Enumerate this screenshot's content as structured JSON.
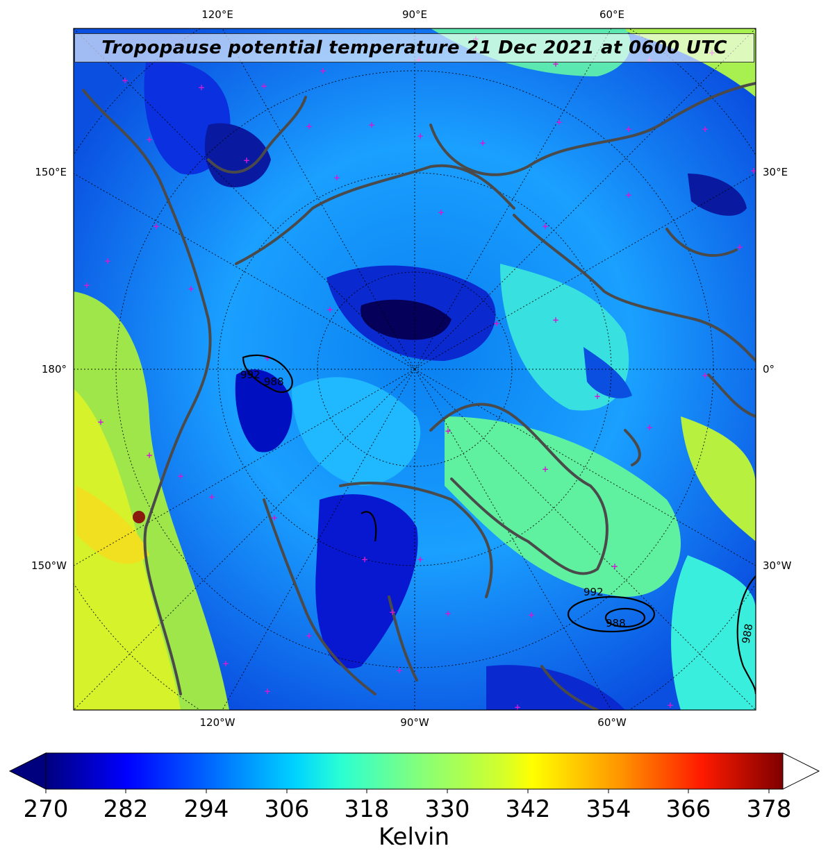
{
  "title": "Tropopause potential temperature 21 Dec 2021 at 0600 UTC",
  "longitude_labels": {
    "top": [
      "120°E",
      "90°E",
      "60°E"
    ],
    "bottom": [
      "120°W",
      "90°W",
      "60°W"
    ],
    "left": [
      "150°E",
      "180°",
      "150°W"
    ],
    "right": [
      "30°E",
      "0°",
      "30°W"
    ]
  },
  "pressure_contours": [
    "992",
    "988",
    "992",
    "988",
    "988"
  ],
  "colorbar": {
    "label": "Kelvin",
    "ticks": [
      "270",
      "282",
      "294",
      "306",
      "318",
      "330",
      "342",
      "354",
      "366",
      "378"
    ],
    "min": 270,
    "max": 380,
    "extend": "both",
    "colormap": "jet",
    "colors": [
      "#00007f",
      "#0000ff",
      "#007fff",
      "#00ffff",
      "#7fff7f",
      "#ffff00",
      "#ff7f00",
      "#ff0000",
      "#7f0000"
    ]
  },
  "map_colors": {
    "coastline": "#4a4a4a",
    "station_marker": "#d21ad2",
    "contour": "#000000"
  }
}
